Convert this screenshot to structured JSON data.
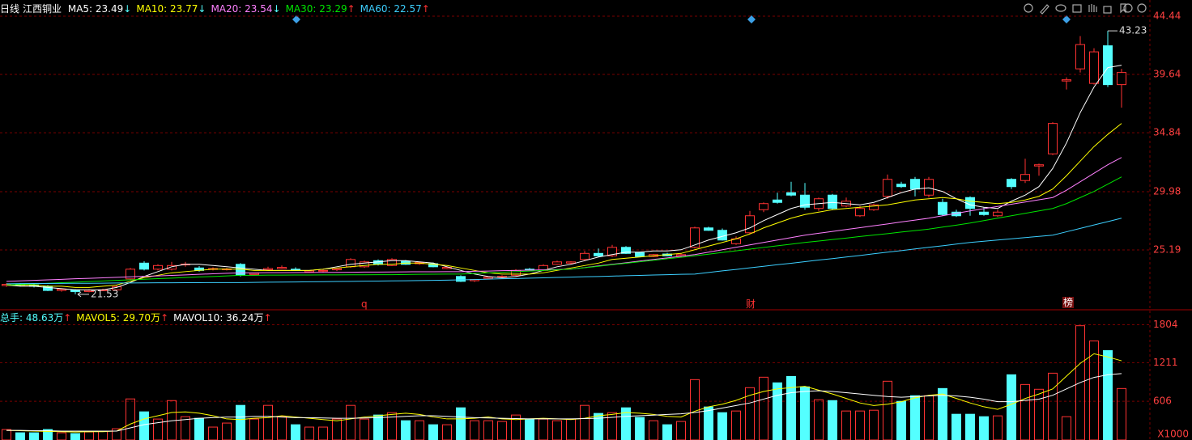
{
  "chart_data": [
    {
      "type": "candlestick",
      "period": "日线",
      "stock_name": "江西铜业",
      "up_color": "#ff3232",
      "down_color": "#54ffff",
      "open": [
        22.25,
        22.35,
        22.3,
        22.2,
        21.85,
        21.9,
        21.75,
        21.85,
        21.9,
        22.8,
        24.1,
        23.6,
        23.6,
        24.0,
        23.7,
        23.6,
        23.58,
        24.0,
        23.15,
        23.55,
        23.65,
        23.6,
        23.35,
        23.45,
        23.55,
        23.8,
        23.8,
        24.3,
        23.9,
        24.25,
        24.05,
        24.05,
        23.65,
        23.0,
        22.65,
        22.85,
        22.95,
        23.1,
        23.6,
        23.5,
        24.0,
        24.1,
        24.4,
        24.9,
        24.7,
        25.4,
        24.95,
        24.65,
        24.85,
        24.7,
        25.4,
        27.0,
        26.8,
        25.7,
        26.6,
        28.5,
        29.3,
        29.9,
        29.7,
        28.6,
        29.7,
        28.8,
        28.0,
        28.5,
        29.6,
        30.6,
        31.0,
        29.7,
        29.1,
        28.3,
        29.5,
        28.3,
        28.0,
        31.0,
        30.9,
        32.1,
        33.1,
        39.1,
        40.1,
        38.9,
        42.0,
        38.8
      ],
      "high": [
        22.45,
        22.45,
        22.4,
        22.3,
        22.0,
        21.95,
        21.95,
        22.0,
        22.3,
        23.7,
        24.25,
        24.0,
        24.2,
        24.2,
        23.85,
        23.75,
        23.7,
        24.1,
        23.3,
        23.8,
        23.9,
        23.75,
        23.5,
        23.55,
        23.7,
        24.5,
        24.3,
        24.4,
        24.5,
        24.35,
        24.2,
        24.15,
        23.8,
        23.1,
        22.8,
        23.0,
        23.1,
        23.6,
        23.7,
        24.0,
        24.3,
        24.25,
        25.1,
        25.3,
        25.6,
        25.5,
        25.0,
        24.85,
        24.95,
        24.9,
        27.1,
        27.1,
        26.95,
        26.3,
        28.4,
        29.1,
        29.9,
        30.8,
        30.7,
        29.5,
        29.8,
        29.5,
        28.8,
        29.0,
        31.4,
        30.8,
        31.2,
        31.2,
        29.4,
        28.5,
        29.6,
        28.7,
        28.5,
        31.1,
        32.7,
        32.3,
        35.7,
        39.4,
        42.8,
        41.8,
        43.23,
        40.1
      ],
      "low": [
        22.15,
        22.2,
        22.1,
        21.8,
        21.75,
        21.53,
        21.7,
        21.8,
        21.85,
        22.7,
        23.5,
        23.5,
        23.5,
        23.8,
        23.4,
        23.5,
        23.5,
        23.0,
        23.1,
        23.5,
        23.6,
        23.5,
        23.3,
        23.35,
        23.45,
        23.7,
        23.7,
        23.9,
        23.85,
        23.95,
        23.95,
        23.75,
        23.6,
        22.55,
        22.55,
        22.8,
        22.9,
        23.0,
        23.5,
        23.45,
        23.95,
        24.0,
        24.3,
        24.6,
        24.6,
        24.85,
        24.6,
        24.6,
        24.65,
        24.6,
        25.3,
        26.75,
        25.95,
        25.6,
        26.5,
        28.3,
        29.0,
        29.6,
        28.5,
        28.4,
        28.5,
        28.7,
        27.9,
        28.4,
        29.4,
        30.3,
        29.6,
        29.5,
        28.0,
        27.9,
        28.0,
        28.0,
        27.9,
        30.2,
        30.7,
        31.3,
        33.0,
        38.4,
        39.8,
        38.8,
        38.6,
        36.9
      ],
      "close": [
        22.35,
        22.3,
        22.2,
        21.85,
        21.95,
        21.75,
        21.85,
        21.9,
        22.15,
        23.6,
        23.6,
        23.9,
        23.9,
        24.02,
        23.5,
        23.65,
        23.62,
        23.1,
        23.25,
        23.65,
        23.75,
        23.55,
        23.45,
        23.5,
        23.65,
        24.4,
        24.2,
        24.0,
        24.4,
        24.0,
        24.15,
        23.8,
        23.75,
        22.6,
        22.75,
        22.95,
        23.0,
        23.5,
        23.55,
        23.9,
        24.2,
        24.2,
        24.9,
        24.7,
        25.4,
        24.9,
        24.65,
        24.8,
        24.7,
        24.8,
        27.0,
        26.8,
        26.0,
        26.1,
        28.0,
        29.0,
        29.1,
        29.7,
        28.7,
        29.4,
        28.6,
        29.2,
        28.6,
        28.9,
        31.0,
        30.4,
        30.2,
        31.0,
        28.1,
        28.0,
        28.6,
        28.1,
        28.3,
        30.4,
        31.4,
        32.2,
        35.6,
        39.2,
        42.1,
        41.5,
        38.8,
        39.8
      ],
      "high_label": 43.23,
      "low_label": 21.53,
      "series": [
        {
          "name": "MA5: 23.49",
          "trend": "↓",
          "trend_color": "#54ffff",
          "color": "#ffffff",
          "values": [
            22.3,
            22.2,
            22.2,
            22.1,
            22.0,
            21.9,
            21.9,
            21.9,
            22.1,
            22.5,
            23.0,
            23.4,
            23.8,
            24.0,
            24.0,
            23.9,
            23.8,
            23.7,
            23.6,
            23.5,
            23.5,
            23.5,
            23.5,
            23.6,
            23.8,
            24.0,
            24.1,
            24.2,
            24.3,
            24.3,
            24.2,
            24.1,
            23.8,
            23.5,
            23.2,
            23.0,
            22.9,
            23.0,
            23.2,
            23.5,
            23.8,
            24.0,
            24.3,
            24.6,
            24.8,
            25.0,
            25.0,
            25.1,
            25.1,
            25.2,
            25.6,
            26.0,
            26.3,
            26.6,
            27.0,
            27.6,
            28.1,
            28.6,
            28.9,
            29.0,
            29.1,
            29.0,
            28.9,
            29.1,
            29.5,
            29.9,
            30.2,
            30.3,
            30.0,
            29.4,
            28.9,
            28.7,
            28.6,
            29.2,
            29.7,
            30.4,
            31.9,
            34.0,
            36.5,
            38.6,
            40.2,
            40.4
          ]
        },
        {
          "name": "MA10: 23.77",
          "trend": "↓",
          "trend_color": "#54ffff",
          "color": "#ffff00",
          "values": [
            22.3,
            22.3,
            22.3,
            22.2,
            22.2,
            22.1,
            22.1,
            22.2,
            22.3,
            22.6,
            22.9,
            23.1,
            23.3,
            23.4,
            23.5,
            23.6,
            23.6,
            23.6,
            23.5,
            23.5,
            23.5,
            23.5,
            23.5,
            23.6,
            23.7,
            23.8,
            23.9,
            24.0,
            24.0,
            24.1,
            24.1,
            24.0,
            23.9,
            23.7,
            23.5,
            23.3,
            23.2,
            23.2,
            23.2,
            23.3,
            23.5,
            23.7,
            23.9,
            24.1,
            24.4,
            24.5,
            24.6,
            24.7,
            24.8,
            24.9,
            25.2,
            25.5,
            25.8,
            26.1,
            26.5,
            27.0,
            27.4,
            27.8,
            28.1,
            28.3,
            28.5,
            28.6,
            28.7,
            28.8,
            28.9,
            29.1,
            29.3,
            29.4,
            29.5,
            29.4,
            29.2,
            29.1,
            29.0,
            29.1,
            29.3,
            29.6,
            30.2,
            31.3,
            32.5,
            33.7,
            34.7,
            35.6
          ]
        },
        {
          "name": "MA20: 23.54",
          "trend": "↓",
          "trend_color": "#54ffff",
          "color": "#ff80ff",
          "values": [
            22.6,
            22.64,
            22.68,
            22.72,
            22.76,
            22.81,
            22.85,
            22.89,
            22.93,
            22.97,
            23.01,
            23.05,
            23.09,
            23.13,
            23.18,
            23.22,
            23.26,
            23.3,
            23.3,
            23.31,
            23.31,
            23.32,
            23.33,
            23.34,
            23.34,
            23.35,
            23.36,
            23.36,
            23.37,
            23.38,
            23.39,
            23.39,
            23.4,
            23.4,
            23.43,
            23.45,
            23.48,
            23.5,
            23.52,
            23.55,
            23.57,
            23.6,
            23.73,
            23.87,
            24.0,
            24.13,
            24.27,
            24.4,
            24.53,
            24.67,
            24.8,
            25.0,
            25.2,
            25.4,
            25.6,
            25.8,
            26.0,
            26.2,
            26.4,
            26.56,
            26.71,
            26.87,
            27.02,
            27.18,
            27.33,
            27.49,
            27.64,
            27.8,
            28.0,
            28.2,
            28.4,
            28.58,
            28.77,
            28.95,
            29.13,
            29.32,
            29.5,
            30.1,
            30.8,
            31.5,
            32.2,
            32.8
          ]
        },
        {
          "name": "MA30: 23.29",
          "trend": "↑",
          "trend_color": "#ff3232",
          "color": "#00e600",
          "values": [
            22.3,
            22.35,
            22.39,
            22.44,
            22.49,
            22.53,
            22.58,
            22.63,
            22.68,
            22.72,
            22.77,
            22.82,
            22.86,
            22.91,
            22.96,
            23.0,
            23.05,
            23.1,
            23.1,
            23.11,
            23.11,
            23.12,
            23.12,
            23.13,
            23.13,
            23.14,
            23.14,
            23.15,
            23.15,
            23.16,
            23.18,
            23.19,
            23.2,
            23.2,
            23.25,
            23.3,
            23.35,
            23.4,
            23.45,
            23.5,
            23.55,
            23.6,
            23.72,
            23.84,
            23.97,
            24.09,
            24.21,
            24.33,
            24.46,
            24.58,
            24.7,
            24.84,
            24.98,
            25.11,
            25.25,
            25.39,
            25.53,
            25.66,
            25.8,
            25.92,
            26.04,
            26.16,
            26.29,
            26.41,
            26.53,
            26.66,
            26.78,
            26.9,
            27.07,
            27.23,
            27.4,
            27.6,
            27.8,
            28.0,
            28.2,
            28.4,
            28.6,
            29.0,
            29.5,
            30.0,
            30.6,
            31.2
          ]
        },
        {
          "name": "MA60: 22.57",
          "trend": "↑",
          "trend_color": "#ff3232",
          "color": "#3ccfff",
          "values": [
            22.4,
            22.41,
            22.42,
            22.42,
            22.43,
            22.44,
            22.44,
            22.45,
            22.46,
            22.46,
            22.47,
            22.48,
            22.48,
            22.49,
            22.49,
            22.5,
            22.5,
            22.5,
            22.51,
            22.53,
            22.54,
            22.55,
            22.56,
            22.57,
            22.59,
            22.6,
            22.61,
            22.62,
            22.64,
            22.65,
            22.66,
            22.68,
            22.7,
            22.72,
            22.75,
            22.78,
            22.81,
            22.83,
            22.86,
            22.89,
            22.92,
            22.95,
            22.98,
            23.0,
            23.03,
            23.06,
            23.09,
            23.12,
            23.15,
            23.18,
            23.2,
            23.33,
            23.46,
            23.58,
            23.71,
            23.84,
            23.97,
            24.09,
            24.22,
            24.35,
            24.47,
            24.6,
            24.73,
            24.87,
            25.0,
            25.13,
            25.27,
            25.4,
            25.53,
            25.67,
            25.8,
            25.9,
            26.0,
            26.1,
            26.2,
            26.3,
            26.4,
            26.68,
            26.96,
            27.24,
            27.52,
            27.8
          ]
        }
      ],
      "markers": [
        "q",
        "财",
        "榜"
      ],
      "ylim": [
        20.39,
        45.77
      ],
      "yticks": [
        25.19,
        29.98,
        34.84,
        39.64,
        44.44
      ],
      "grid": true,
      "tick_color": "#ff4040",
      "grid_color": "#7a0000"
    },
    {
      "type": "bar",
      "total": "总手: 48.63万",
      "total_color": "#54ffff",
      "total_trend": "↑",
      "total_trend_color": "#ff3232",
      "values": [
        164,
        113,
        113,
        164,
        113,
        101,
        126,
        139,
        176,
        643,
        441,
        328,
        617,
        365,
        340,
        202,
        265,
        542,
        328,
        542,
        365,
        239,
        202,
        202,
        328,
        542,
        328,
        391,
        428,
        302,
        302,
        239,
        239,
        504,
        302,
        302,
        290,
        391,
        328,
        328,
        302,
        328,
        542,
        416,
        428,
        504,
        353,
        302,
        239,
        290,
        945,
        517,
        428,
        454,
        819,
        983,
        895,
        995,
        832,
        630,
        617,
        454,
        454,
        466,
        920,
        605,
        693,
        693,
        806,
        403,
        403,
        365,
        378,
        1021,
        869,
        794,
        1046,
        365,
        1789,
        1550,
        1399,
        806
      ],
      "series": [
        {
          "name": "MAVOL5: 29.70万",
          "trend": "↑",
          "trend_color": "#ff3232",
          "color": "#ffff00",
          "values": [
            150,
            145,
            140,
            135,
            130,
            125,
            130,
            130,
            140,
            250,
            330,
            380,
            430,
            440,
            420,
            380,
            330,
            320,
            340,
            350,
            380,
            360,
            340,
            320,
            300,
            330,
            360,
            380,
            400,
            420,
            400,
            360,
            330,
            330,
            340,
            360,
            330,
            320,
            330,
            340,
            330,
            320,
            340,
            380,
            400,
            430,
            420,
            400,
            370,
            360,
            450,
            520,
            560,
            620,
            700,
            760,
            800,
            820,
            840,
            780,
            720,
            650,
            580,
            540,
            560,
            600,
            660,
            700,
            720,
            650,
            580,
            520,
            480,
            560,
            650,
            720,
            800,
            1000,
            1200,
            1350,
            1300,
            1240
          ]
        },
        {
          "name": "MAVOL10: 36.24万",
          "trend": "↑",
          "trend_color": "#ff3232",
          "color": "#ffffff",
          "values": [
            150,
            150,
            145,
            145,
            140,
            140,
            140,
            140,
            140,
            190,
            240,
            270,
            300,
            320,
            340,
            350,
            360,
            360,
            370,
            370,
            360,
            350,
            350,
            345,
            340,
            340,
            345,
            350,
            360,
            370,
            380,
            380,
            370,
            360,
            350,
            345,
            340,
            335,
            330,
            330,
            330,
            330,
            335,
            340,
            355,
            370,
            380,
            390,
            400,
            410,
            430,
            460,
            500,
            540,
            580,
            640,
            700,
            740,
            760,
            770,
            760,
            740,
            720,
            700,
            680,
            670,
            680,
            690,
            700,
            690,
            670,
            640,
            600,
            600,
            620,
            640,
            700,
            800,
            900,
            980,
            1020,
            1040
          ]
        }
      ],
      "unit_label": "X1000",
      "ylim": [
        0,
        1975
      ],
      "yticks": [
        606,
        1211,
        1804
      ],
      "grid": true,
      "tick_color": "#ff4040",
      "grid_color": "#7a0000"
    }
  ]
}
